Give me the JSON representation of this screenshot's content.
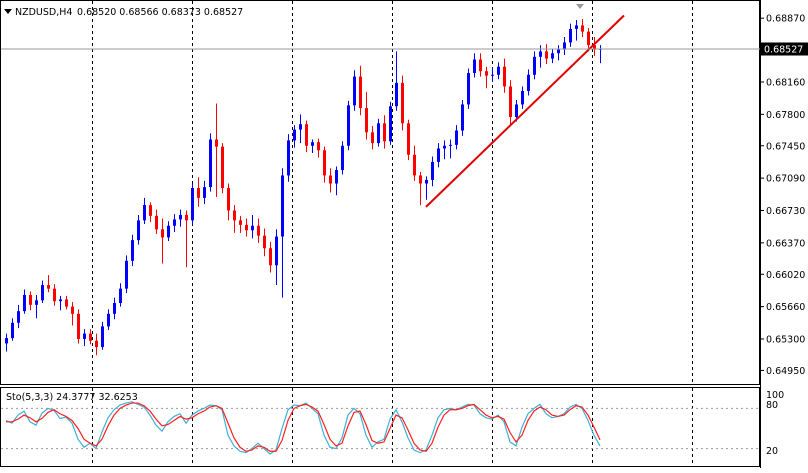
{
  "header": {
    "symbol": "NZDUSD,H4",
    "ohlc": "0.68520 0.68566 0.68373 0.68527",
    "dropdown_icon": "triangle-down-icon"
  },
  "colors": {
    "bull": "#0000ff",
    "bear": "#ff0000",
    "trendline": "#e00000",
    "grid": "#000000",
    "price_tag_bg": "#000000",
    "price_tag_fg": "#ffffff",
    "stoch_main": "#3fb0d8",
    "stoch_signal": "#ff2020"
  },
  "price_axis": {
    "labels": [
      "0.68870",
      "0.68160",
      "0.67800",
      "0.67450",
      "0.67090",
      "0.66730",
      "0.66370",
      "0.66020",
      "0.65660",
      "0.65300",
      "0.64950"
    ],
    "current_price": "0.68527"
  },
  "stochastic": {
    "label": "Sto(5,3,3) 24.3777 32.6253",
    "levels": [
      "100",
      "80",
      "20"
    ]
  },
  "chart_data": {
    "type": "candlestick",
    "symbol": "NZDUSD",
    "timeframe": "H4",
    "ylim": [
      0.6481,
      0.6905
    ],
    "period_separators": 7,
    "candles": [
      [
        0.6525,
        0.6536,
        0.6516,
        0.6531
      ],
      [
        0.6531,
        0.6553,
        0.6528,
        0.6548
      ],
      [
        0.6548,
        0.6568,
        0.6542,
        0.6561
      ],
      [
        0.6561,
        0.6585,
        0.6558,
        0.6579
      ],
      [
        0.6579,
        0.6583,
        0.6562,
        0.6568
      ],
      [
        0.6568,
        0.6579,
        0.6553,
        0.6573
      ],
      [
        0.6573,
        0.6595,
        0.657,
        0.659
      ],
      [
        0.659,
        0.6601,
        0.6582,
        0.6586
      ],
      [
        0.6586,
        0.6591,
        0.6567,
        0.6572
      ],
      [
        0.6572,
        0.6578,
        0.6562,
        0.6574
      ],
      [
        0.6574,
        0.6578,
        0.6563,
        0.6566
      ],
      [
        0.6566,
        0.6571,
        0.6545,
        0.6558
      ],
      [
        0.6558,
        0.6563,
        0.6525,
        0.653
      ],
      [
        0.653,
        0.6541,
        0.6522,
        0.6536
      ],
      [
        0.6536,
        0.6541,
        0.6524,
        0.6528
      ],
      [
        0.6528,
        0.6536,
        0.6512,
        0.6521
      ],
      [
        0.6521,
        0.6549,
        0.6518,
        0.6544
      ],
      [
        0.6544,
        0.6563,
        0.654,
        0.6558
      ],
      [
        0.6558,
        0.6576,
        0.6552,
        0.657
      ],
      [
        0.657,
        0.6592,
        0.6566,
        0.6586
      ],
      [
        0.6586,
        0.6623,
        0.6581,
        0.6617
      ],
      [
        0.6617,
        0.6646,
        0.6611,
        0.664
      ],
      [
        0.664,
        0.6668,
        0.6635,
        0.6662
      ],
      [
        0.6662,
        0.6687,
        0.6658,
        0.6679
      ],
      [
        0.6679,
        0.6682,
        0.666,
        0.6667
      ],
      [
        0.6667,
        0.6674,
        0.6647,
        0.6652
      ],
      [
        0.6652,
        0.6664,
        0.6614,
        0.6643
      ],
      [
        0.6643,
        0.6661,
        0.6639,
        0.6656
      ],
      [
        0.6656,
        0.6669,
        0.6649,
        0.6663
      ],
      [
        0.6663,
        0.6674,
        0.6655,
        0.6668
      ],
      [
        0.6668,
        0.6673,
        0.661,
        0.6662
      ],
      [
        0.6662,
        0.6703,
        0.6657,
        0.6698
      ],
      [
        0.6698,
        0.671,
        0.6677,
        0.6687
      ],
      [
        0.6687,
        0.6706,
        0.668,
        0.6699
      ],
      [
        0.6699,
        0.6759,
        0.6694,
        0.6752
      ],
      [
        0.6752,
        0.6792,
        0.6688,
        0.6744
      ],
      [
        0.6744,
        0.6748,
        0.6692,
        0.6698
      ],
      [
        0.6698,
        0.6703,
        0.6662,
        0.6673
      ],
      [
        0.6673,
        0.6679,
        0.6648,
        0.6662
      ],
      [
        0.6662,
        0.6667,
        0.6648,
        0.6657
      ],
      [
        0.6657,
        0.6664,
        0.6644,
        0.6651
      ],
      [
        0.6651,
        0.6668,
        0.6642,
        0.6656
      ],
      [
        0.6656,
        0.6664,
        0.6637,
        0.6645
      ],
      [
        0.6645,
        0.6653,
        0.6622,
        0.6631
      ],
      [
        0.6631,
        0.6638,
        0.6604,
        0.6612
      ],
      [
        0.6612,
        0.6652,
        0.659,
        0.6644
      ],
      [
        0.6644,
        0.672,
        0.6576,
        0.6712
      ],
      [
        0.6712,
        0.6758,
        0.6705,
        0.6751
      ],
      [
        0.6751,
        0.6768,
        0.6743,
        0.6763
      ],
      [
        0.6763,
        0.678,
        0.6748,
        0.6769
      ],
      [
        0.6769,
        0.6773,
        0.6738,
        0.6745
      ],
      [
        0.6745,
        0.6752,
        0.6737,
        0.6749
      ],
      [
        0.6749,
        0.6753,
        0.6732,
        0.674
      ],
      [
        0.674,
        0.6744,
        0.6704,
        0.6712
      ],
      [
        0.6712,
        0.672,
        0.6693,
        0.6703
      ],
      [
        0.6703,
        0.6722,
        0.669,
        0.6718
      ],
      [
        0.6718,
        0.675,
        0.6713,
        0.6745
      ],
      [
        0.6745,
        0.6795,
        0.674,
        0.679
      ],
      [
        0.679,
        0.6829,
        0.6784,
        0.6822
      ],
      [
        0.6822,
        0.6834,
        0.6779,
        0.6787
      ],
      [
        0.6787,
        0.6805,
        0.6752,
        0.676
      ],
      [
        0.676,
        0.6767,
        0.6741,
        0.6748
      ],
      [
        0.6748,
        0.6775,
        0.6744,
        0.677
      ],
      [
        0.677,
        0.6779,
        0.6742,
        0.675
      ],
      [
        0.675,
        0.6794,
        0.6746,
        0.6789
      ],
      [
        0.6789,
        0.685,
        0.6784,
        0.6815
      ],
      [
        0.6815,
        0.6823,
        0.6762,
        0.677
      ],
      [
        0.677,
        0.6774,
        0.6729,
        0.6735
      ],
      [
        0.6735,
        0.6745,
        0.6706,
        0.6712
      ],
      [
        0.6712,
        0.6716,
        0.6679,
        0.6703
      ],
      [
        0.6703,
        0.6711,
        0.6685,
        0.6707
      ],
      [
        0.6707,
        0.6733,
        0.67,
        0.6727
      ],
      [
        0.6727,
        0.6748,
        0.6721,
        0.6742
      ],
      [
        0.6742,
        0.6751,
        0.673,
        0.6745
      ],
      [
        0.6745,
        0.6752,
        0.6731,
        0.6746
      ],
      [
        0.6746,
        0.6768,
        0.6741,
        0.6762
      ],
      [
        0.6762,
        0.6796,
        0.6756,
        0.6791
      ],
      [
        0.6791,
        0.6831,
        0.6786,
        0.6826
      ],
      [
        0.6826,
        0.6848,
        0.6821,
        0.6841
      ],
      [
        0.6841,
        0.6848,
        0.6822,
        0.6828
      ],
      [
        0.6828,
        0.6833,
        0.6809,
        0.6823
      ],
      [
        0.6823,
        0.6832,
        0.6816,
        0.6824
      ],
      [
        0.6824,
        0.6838,
        0.6819,
        0.6833
      ],
      [
        0.6833,
        0.6842,
        0.6804,
        0.6811
      ],
      [
        0.6811,
        0.6818,
        0.6769,
        0.6777
      ],
      [
        0.6777,
        0.6796,
        0.6772,
        0.6791
      ],
      [
        0.6791,
        0.6811,
        0.6786,
        0.6806
      ],
      [
        0.6806,
        0.683,
        0.6801,
        0.6824
      ],
      [
        0.6824,
        0.685,
        0.6819,
        0.6844
      ],
      [
        0.6844,
        0.6857,
        0.6832,
        0.685
      ],
      [
        0.685,
        0.6858,
        0.6836,
        0.6842
      ],
      [
        0.6842,
        0.6853,
        0.6837,
        0.6848
      ],
      [
        0.6848,
        0.6857,
        0.684,
        0.6852
      ],
      [
        0.6852,
        0.6866,
        0.6846,
        0.686
      ],
      [
        0.686,
        0.6881,
        0.6855,
        0.6875
      ],
      [
        0.6875,
        0.6885,
        0.6862,
        0.6879
      ],
      [
        0.6879,
        0.6886,
        0.6866,
        0.6872
      ],
      [
        0.6872,
        0.6876,
        0.685,
        0.6857
      ],
      [
        0.6857,
        0.6866,
        0.6845,
        0.6852
      ],
      [
        0.6852,
        0.6857,
        0.6837,
        0.6853
      ]
    ],
    "trendline": {
      "from_index": 70,
      "from_price": 0.6677,
      "to_index": 103,
      "to_price": 0.689
    },
    "stochastic": {
      "params": "5,3,3",
      "levels": [
        20,
        80
      ],
      "main": [
        62,
        58,
        70,
        76,
        60,
        55,
        73,
        80,
        77,
        65,
        67,
        58,
        34,
        22,
        28,
        20,
        45,
        66,
        78,
        85,
        88,
        90,
        86,
        82,
        70,
        55,
        46,
        60,
        68,
        72,
        58,
        70,
        76,
        80,
        85,
        84,
        78,
        40,
        24,
        16,
        14,
        20,
        28,
        20,
        12,
        18,
        50,
        78,
        85,
        84,
        88,
        80,
        72,
        40,
        22,
        20,
        36,
        70,
        80,
        72,
        40,
        22,
        30,
        34,
        64,
        78,
        60,
        36,
        18,
        14,
        18,
        40,
        66,
        78,
        80,
        78,
        82,
        86,
        85,
        72,
        66,
        64,
        70,
        60,
        30,
        24,
        52,
        72,
        80,
        86,
        72,
        66,
        68,
        72,
        82,
        86,
        80,
        62,
        40,
        24
      ],
      "signal": [
        60,
        60,
        64,
        70,
        66,
        60,
        65,
        74,
        78,
        72,
        68,
        62,
        50,
        34,
        28,
        24,
        34,
        54,
        70,
        80,
        85,
        88,
        88,
        84,
        76,
        64,
        54,
        56,
        62,
        68,
        64,
        66,
        72,
        76,
        82,
        84,
        80,
        58,
        36,
        22,
        16,
        18,
        24,
        22,
        16,
        16,
        32,
        62,
        80,
        84,
        86,
        82,
        76,
        56,
        34,
        24,
        28,
        54,
        74,
        76,
        56,
        32,
        28,
        30,
        50,
        70,
        66,
        48,
        28,
        18,
        16,
        28,
        52,
        70,
        78,
        78,
        80,
        84,
        86,
        78,
        70,
        66,
        68,
        64,
        44,
        30,
        40,
        62,
        76,
        82,
        78,
        70,
        68,
        70,
        78,
        84,
        82,
        70,
        52,
        33
      ]
    }
  }
}
